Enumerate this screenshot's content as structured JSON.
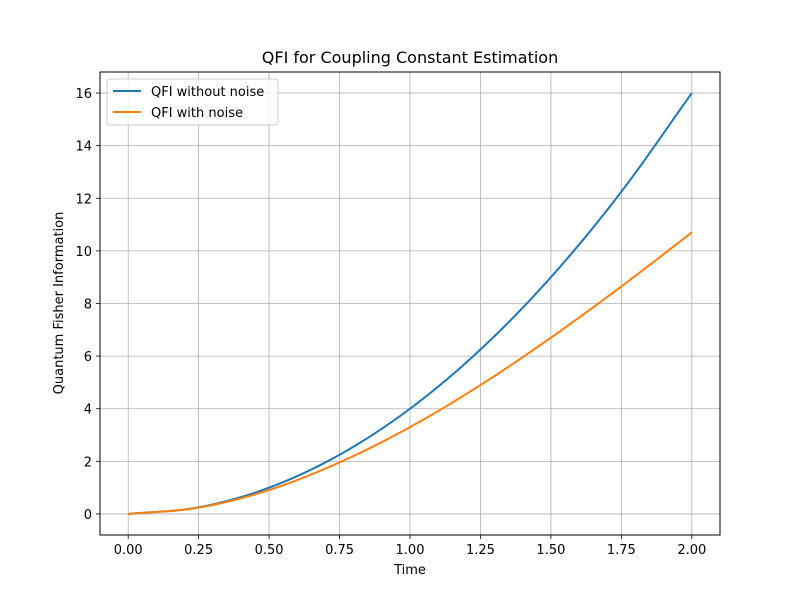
{
  "chart_data": {
    "type": "line",
    "title": "QFI for Coupling Constant Estimation",
    "xlabel": "Time",
    "ylabel": "Quantum Fisher Information",
    "xlim": [
      -0.1,
      2.1
    ],
    "ylim": [
      -0.8,
      16.8
    ],
    "xticks": [
      "0.00",
      "0.25",
      "0.50",
      "0.75",
      "1.00",
      "1.25",
      "1.50",
      "1.75",
      "2.00"
    ],
    "yticks": [
      "0",
      "2",
      "4",
      "6",
      "8",
      "10",
      "12",
      "14",
      "16"
    ],
    "grid": true,
    "legend_position": "upper-left",
    "x": [
      0.0,
      0.25,
      0.5,
      0.75,
      1.0,
      1.25,
      1.5,
      1.75,
      2.0
    ],
    "series": [
      {
        "name": "QFI without noise",
        "color": "#1f77b4",
        "values": [
          0.0,
          0.25,
          1.0,
          2.25,
          4.0,
          6.25,
          9.0,
          12.25,
          16.0
        ]
      },
      {
        "name": "QFI with noise",
        "color": "#ff7f0e",
        "values": [
          0.0,
          0.24,
          0.91,
          1.96,
          3.3,
          4.9,
          6.7,
          8.65,
          10.7
        ]
      }
    ]
  }
}
